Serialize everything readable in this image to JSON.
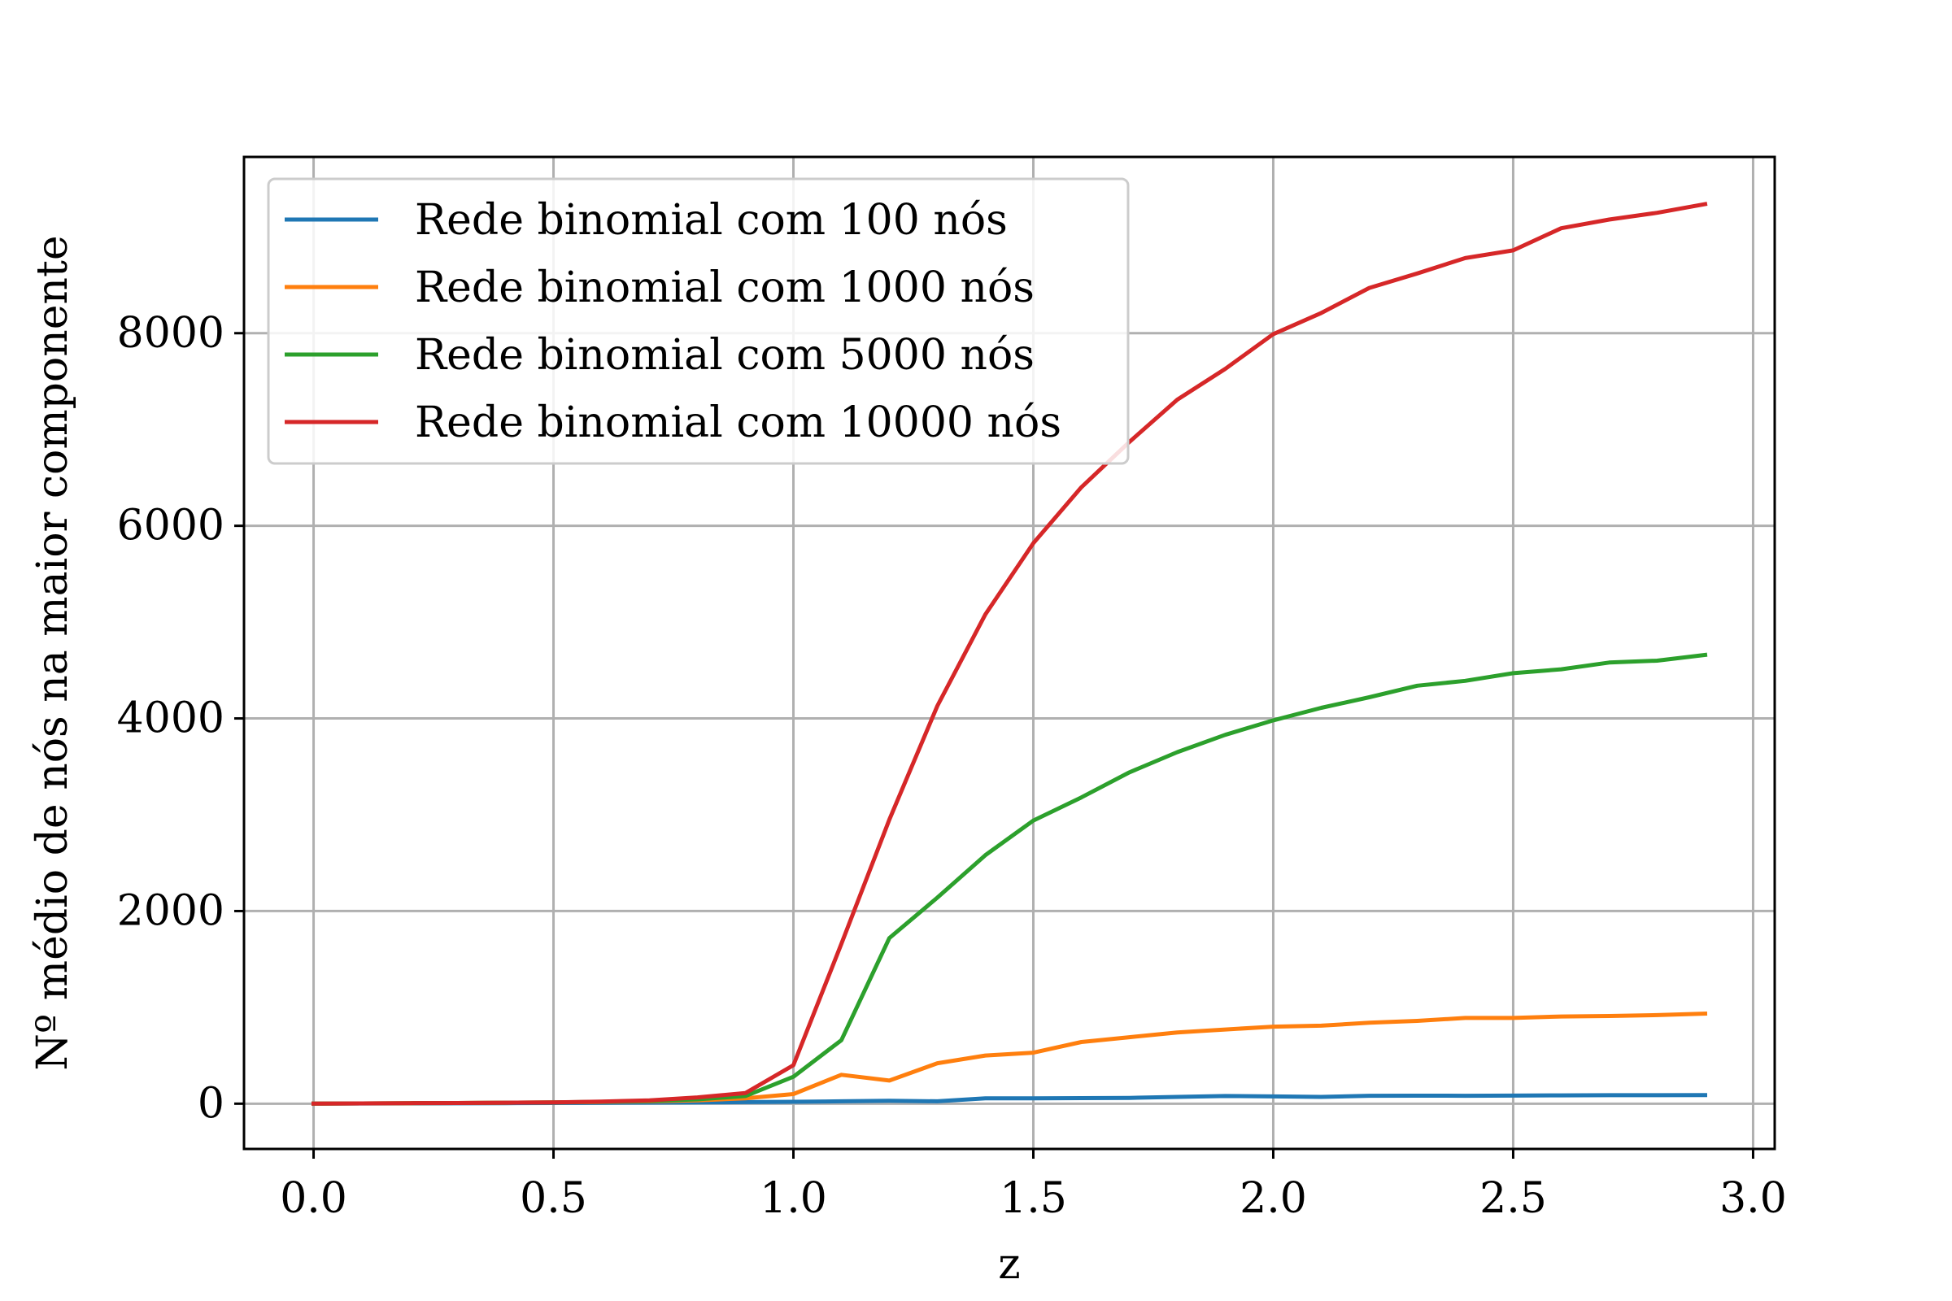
{
  "chart_data": {
    "type": "line",
    "title": "",
    "xlabel": "z",
    "ylabel": "Nº médio de nós na maior componente",
    "xlim": [
      -0.145,
      3.045
    ],
    "ylim": [
      -470,
      9830
    ],
    "xticks": [
      0.0,
      0.5,
      1.0,
      1.5,
      2.0,
      2.5,
      3.0
    ],
    "xtick_labels": [
      "0.0",
      "0.5",
      "1.0",
      "1.5",
      "2.0",
      "2.5",
      "3.0"
    ],
    "yticks": [
      0,
      2000,
      4000,
      6000,
      8000
    ],
    "ytick_labels": [
      "0",
      "2000",
      "4000",
      "6000",
      "8000"
    ],
    "grid": true,
    "legend_position": "top-left",
    "x": [
      0.0,
      0.1,
      0.2,
      0.3,
      0.4,
      0.5,
      0.6,
      0.7,
      0.8,
      0.9,
      1.0,
      1.1,
      1.2,
      1.3,
      1.4,
      1.5,
      1.6,
      1.7,
      1.8,
      1.9,
      2.0,
      2.1,
      2.2,
      2.3,
      2.4,
      2.5,
      2.6,
      2.7,
      2.8,
      2.9
    ],
    "series": [
      {
        "name": "Rede binomial com 100 nós",
        "color": "#1f77b4",
        "values": [
          1,
          2,
          3,
          4,
          5,
          7,
          9,
          11,
          13,
          16,
          20,
          25,
          30,
          25,
          55,
          55,
          58,
          60,
          70,
          80,
          75,
          70,
          82,
          83,
          82,
          84,
          86,
          88,
          88,
          90
        ]
      },
      {
        "name": "Rede binomial com 1000 nós",
        "color": "#ff7f0e",
        "values": [
          1,
          3,
          5,
          7,
          10,
          13,
          18,
          24,
          35,
          55,
          100,
          300,
          240,
          420,
          500,
          530,
          640,
          690,
          740,
          770,
          800,
          810,
          840,
          860,
          890,
          890,
          905,
          910,
          920,
          935
        ]
      },
      {
        "name": "Rede binomial com 5000 nós",
        "color": "#2ca02c",
        "values": [
          1,
          3,
          5,
          7,
          10,
          14,
          20,
          28,
          45,
          80,
          280,
          660,
          1720,
          2140,
          2580,
          2940,
          3180,
          3440,
          3650,
          3830,
          3980,
          4110,
          4220,
          4340,
          4390,
          4470,
          4510,
          4580,
          4600,
          4660
        ]
      },
      {
        "name": "Rede binomial com 10000 nós",
        "color": "#d62728",
        "values": [
          1,
          3,
          5,
          7,
          10,
          14,
          22,
          35,
          65,
          110,
          400,
          1660,
          2950,
          4130,
          5080,
          5820,
          6400,
          6870,
          7310,
          7630,
          7990,
          8210,
          8470,
          8620,
          8780,
          8860,
          9090,
          9180,
          9250,
          9340
        ]
      }
    ]
  }
}
